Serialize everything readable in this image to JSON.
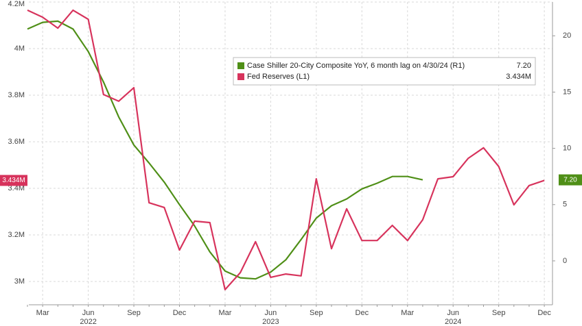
{
  "chart_data": {
    "type": "line",
    "categories": [
      null,
      "Mar",
      null,
      null,
      "Jun",
      null,
      null,
      "Sep",
      null,
      null,
      "Dec",
      null,
      null,
      "Mar",
      null,
      null,
      "Jun",
      null,
      null,
      "Sep",
      null,
      null,
      "Dec",
      null,
      null,
      "Mar",
      null,
      null,
      "Jun",
      null,
      null,
      "Sep",
      null,
      null,
      "Dec"
    ],
    "x_groups": [
      "2022",
      "2023",
      "2024"
    ],
    "series": [
      {
        "name": "Case Shiller 20-City Composite YoY, 6 month lag on 4/30/24 (R1)",
        "color": "#4f8f17",
        "axis": "y2",
        "values": [
          20.6,
          21.2,
          21.3,
          20.6,
          18.6,
          15.9,
          12.8,
          10.3,
          8.7,
          7.0,
          5.0,
          3.1,
          0.8,
          -0.9,
          -1.5,
          -1.6,
          -1.0,
          0.1,
          1.9,
          3.8,
          4.9,
          5.5,
          6.4,
          6.9,
          7.5,
          7.5,
          7.2,
          null,
          null,
          null,
          null,
          null,
          null,
          null,
          null
        ],
        "value_labels": [
          null,
          null,
          null,
          null,
          null,
          null,
          null,
          null,
          null,
          null,
          null,
          null,
          null,
          null,
          null,
          null,
          null,
          null,
          null,
          null,
          null,
          null,
          null,
          null,
          null,
          null,
          "7.20",
          null,
          null,
          null,
          null,
          null,
          null,
          null,
          null
        ]
      },
      {
        "name": "Fed Reserves (L1)",
        "color": "#d7335c",
        "values": [
          4.165,
          4.135,
          4.088,
          4.165,
          4.126,
          3.803,
          3.774,
          3.832,
          3.338,
          3.318,
          3.135,
          3.259,
          3.253,
          2.965,
          3.038,
          3.171,
          3.018,
          3.032,
          3.024,
          3.441,
          3.141,
          3.312,
          3.176,
          3.176,
          3.241,
          3.176,
          3.265,
          3.441,
          3.45,
          3.529,
          3.574,
          3.494,
          3.329,
          3.412,
          3.434
        ],
        "value_labels": [
          null,
          null,
          null,
          null,
          null,
          null,
          null,
          null,
          null,
          null,
          null,
          null,
          null,
          null,
          null,
          null,
          null,
          null,
          null,
          null,
          null,
          null,
          null,
          null,
          null,
          null,
          null,
          null,
          null,
          null,
          null,
          null,
          null,
          null,
          "3.434M"
        ]
      }
    ],
    "ylim": [
      2.9,
      4.2
    ],
    "yticks": [
      {
        "value": 3,
        "label": "3M"
      },
      {
        "value": 3.2,
        "label": "3.2M"
      },
      {
        "value": 3.4,
        "label": "3.4M"
      },
      {
        "value": 3.6,
        "label": "3.6M"
      },
      {
        "value": 3.8,
        "label": "3.8M"
      },
      {
        "value": 4,
        "label": "4M"
      },
      {
        "value": 4.2,
        "label": "4.2M"
      }
    ],
    "y2lim": [
      -3.9,
      23
    ],
    "y2ticks": [
      0,
      5,
      10,
      15,
      20
    ],
    "grid": true
  }
}
